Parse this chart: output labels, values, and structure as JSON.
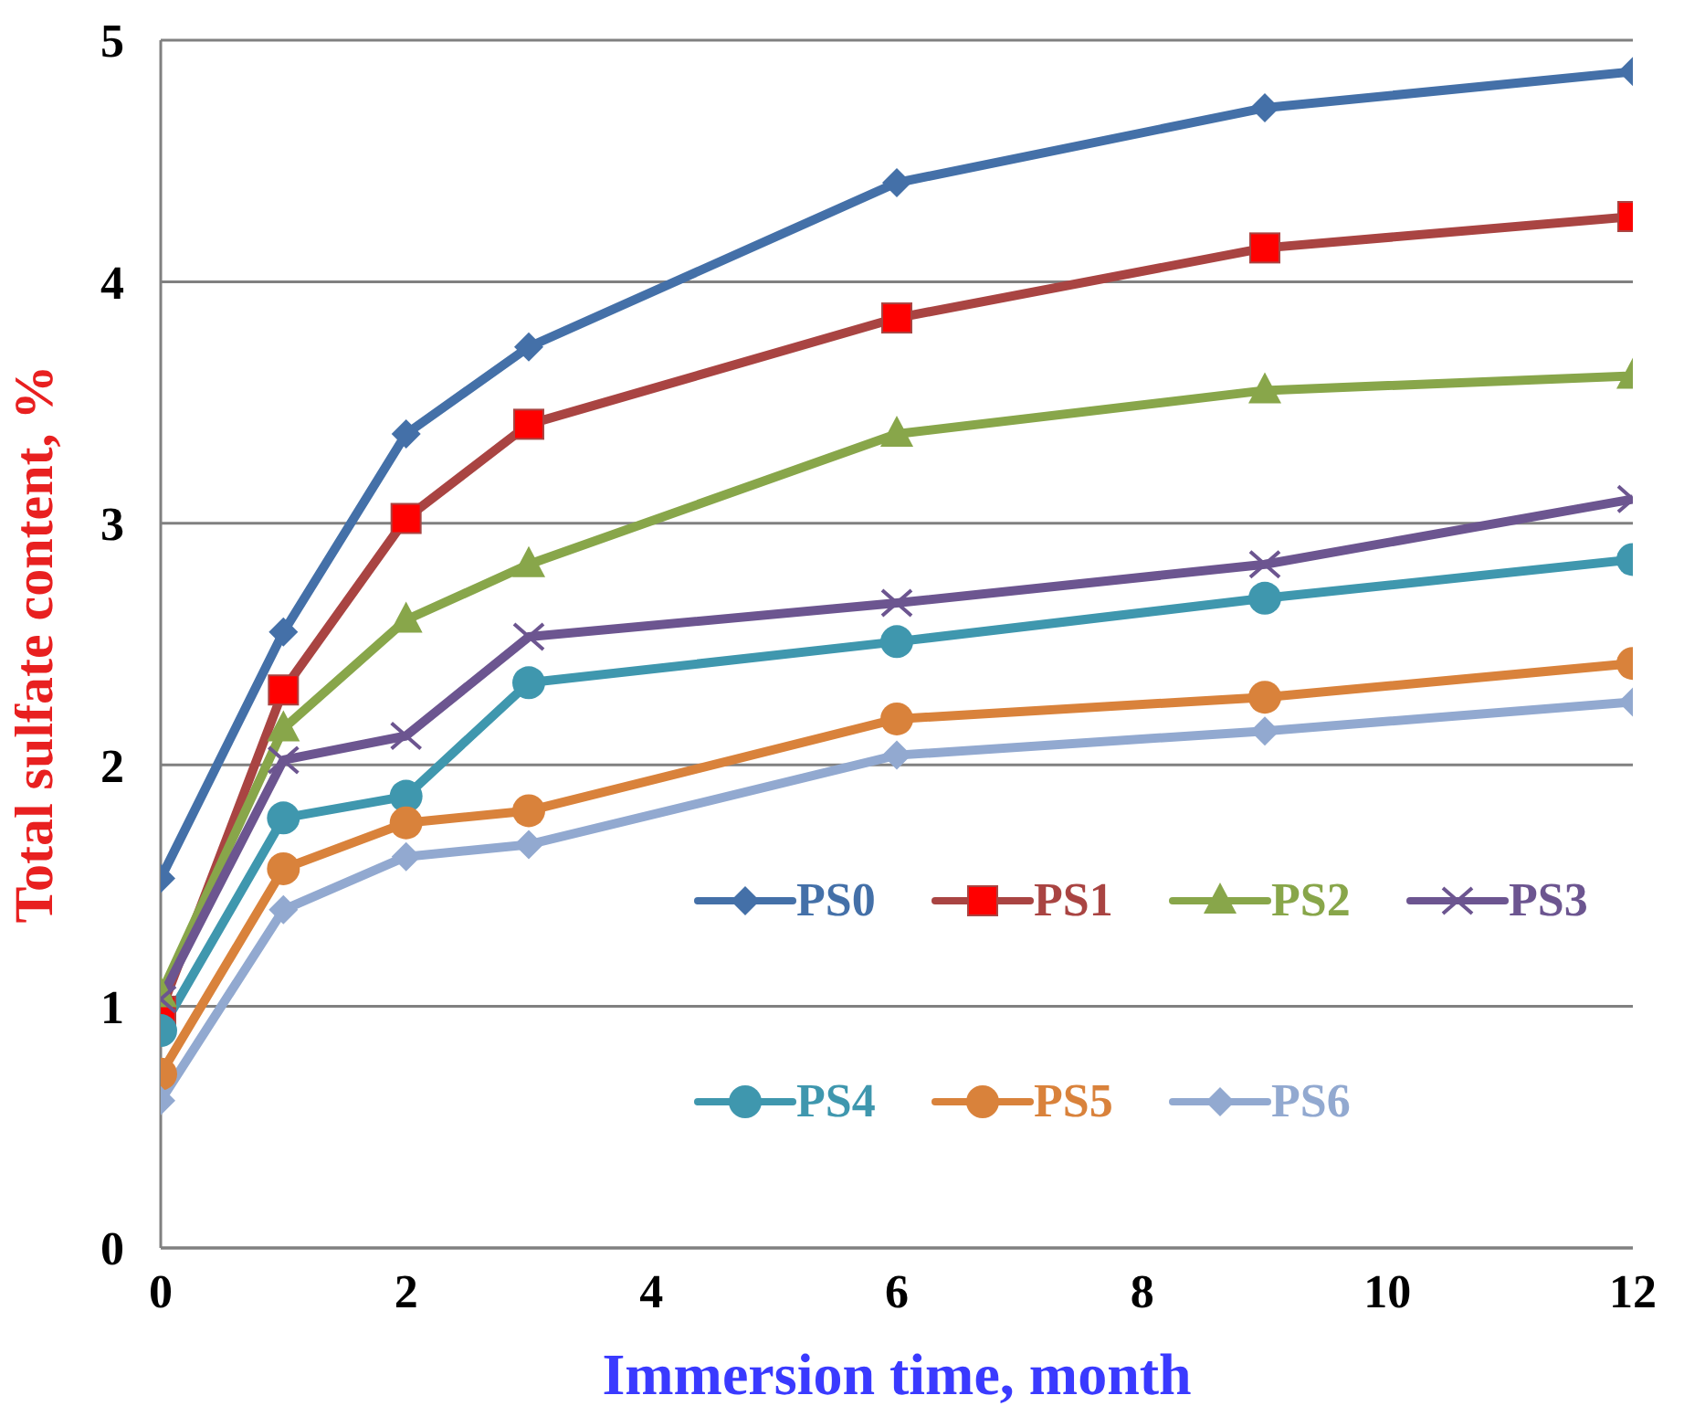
{
  "chart_data": {
    "type": "line",
    "xlabel": "Immersion time, month",
    "ylabel": "Total sulfate content, %",
    "x": [
      0,
      1,
      2,
      3,
      6,
      9,
      12
    ],
    "xlim": [
      0,
      12
    ],
    "xticks": [
      0,
      2,
      4,
      6,
      8,
      10,
      12
    ],
    "ylim": [
      0,
      5
    ],
    "yticks": [
      0,
      1,
      2,
      3,
      4,
      5
    ],
    "grid": "y",
    "legend": "bottom right",
    "line_style": "solid",
    "series": [
      {
        "name": "PS0",
        "color": "#4470a8",
        "marker": "diamond",
        "values": [
          1.53,
          2.55,
          3.37,
          3.73,
          4.41,
          4.72,
          4.87
        ]
      },
      {
        "name": "PS1",
        "color": "#a94442",
        "marker": "square",
        "values": [
          0.98,
          2.31,
          3.02,
          3.41,
          3.85,
          4.14,
          4.27
        ]
      },
      {
        "name": "PS2",
        "color": "#88a64a",
        "marker": "triangle",
        "values": [
          1.05,
          2.15,
          2.6,
          2.83,
          3.37,
          3.55,
          3.61
        ]
      },
      {
        "name": "PS3",
        "color": "#6c5590",
        "marker": "cross",
        "values": [
          1.03,
          2.02,
          2.12,
          2.53,
          2.67,
          2.83,
          3.1
        ]
      },
      {
        "name": "PS4",
        "color": "#3f97ae",
        "marker": "circle",
        "values": [
          0.9,
          1.78,
          1.87,
          2.34,
          2.51,
          2.69,
          2.85
        ]
      },
      {
        "name": "PS5",
        "color": "#d9823b",
        "marker": "circle",
        "values": [
          0.72,
          1.57,
          1.76,
          1.81,
          2.19,
          2.28,
          2.42
        ]
      },
      {
        "name": "PS6",
        "color": "#92a9d0",
        "marker": "diamond",
        "values": [
          0.61,
          1.4,
          1.62,
          1.67,
          2.04,
          2.14,
          2.26
        ]
      }
    ]
  }
}
